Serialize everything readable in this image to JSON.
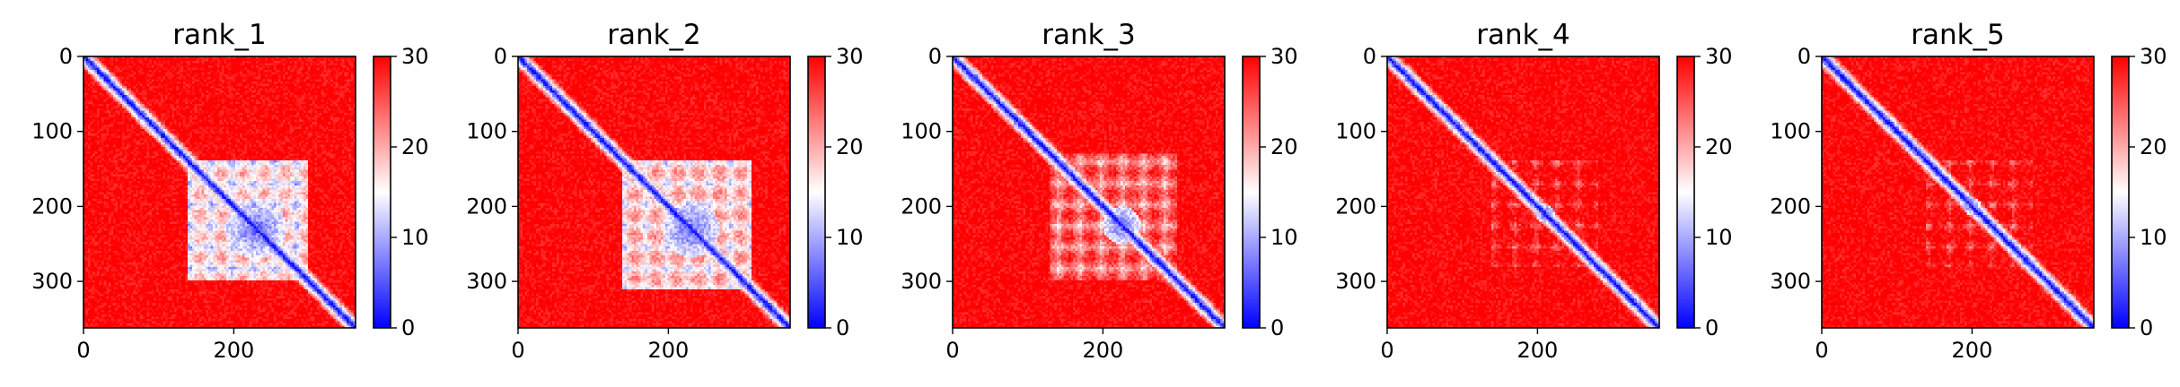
{
  "chart_data": [
    {
      "type": "heatmap",
      "title": "rank_1",
      "x_ticks": [
        0,
        200
      ],
      "y_ticks": [
        0,
        100,
        200,
        300
      ],
      "xlim": [
        0,
        362
      ],
      "ylim": [
        362,
        0
      ],
      "colorbar": {
        "min": 0,
        "max": 30,
        "ticks": [
          0,
          10,
          20,
          30
        ],
        "colormap": "bwr"
      },
      "features": {
        "diagonal_low": true,
        "block_start": 140,
        "block_end": 300,
        "block_strength": 0.85,
        "core_center": 230,
        "core_radius": 40
      }
    },
    {
      "type": "heatmap",
      "title": "rank_2",
      "x_ticks": [
        0,
        200
      ],
      "y_ticks": [
        0,
        100,
        200,
        300
      ],
      "xlim": [
        0,
        362
      ],
      "ylim": [
        362,
        0
      ],
      "colorbar": {
        "min": 0,
        "max": 30,
        "ticks": [
          0,
          10,
          20,
          30
        ],
        "colormap": "bwr"
      },
      "features": {
        "diagonal_low": true,
        "block_start": 140,
        "block_end": 310,
        "block_strength": 0.8,
        "core_center": 230,
        "core_radius": 38
      }
    },
    {
      "type": "heatmap",
      "title": "rank_3",
      "x_ticks": [
        0,
        200
      ],
      "y_ticks": [
        0,
        100,
        200,
        300
      ],
      "xlim": [
        0,
        362
      ],
      "ylim": [
        362,
        0
      ],
      "colorbar": {
        "min": 0,
        "max": 30,
        "ticks": [
          0,
          10,
          20,
          30
        ],
        "colormap": "bwr"
      },
      "features": {
        "diagonal_low": true,
        "block_start": 130,
        "block_end": 300,
        "block_strength": 0.6,
        "core_center": 225,
        "core_radius": 25
      }
    },
    {
      "type": "heatmap",
      "title": "rank_4",
      "x_ticks": [
        0,
        200
      ],
      "y_ticks": [
        0,
        100,
        200,
        300
      ],
      "xlim": [
        0,
        362
      ],
      "ylim": [
        362,
        0
      ],
      "colorbar": {
        "min": 0,
        "max": 30,
        "ticks": [
          0,
          10,
          20,
          30
        ],
        "colormap": "bwr"
      },
      "features": {
        "diagonal_low": true,
        "block_start": 140,
        "block_end": 280,
        "block_strength": 0.4,
        "core_center": 210,
        "core_radius": 12
      }
    },
    {
      "type": "heatmap",
      "title": "rank_5",
      "x_ticks": [
        0,
        200
      ],
      "y_ticks": [
        0,
        100,
        200,
        300
      ],
      "xlim": [
        0,
        362
      ],
      "ylim": [
        362,
        0
      ],
      "colorbar": {
        "min": 0,
        "max": 30,
        "ticks": [
          0,
          10,
          20,
          30
        ],
        "colormap": "bwr"
      },
      "features": {
        "diagonal_low": true,
        "block_start": 140,
        "block_end": 280,
        "block_strength": 0.4,
        "core_center": 200,
        "core_radius": 12
      }
    }
  ]
}
